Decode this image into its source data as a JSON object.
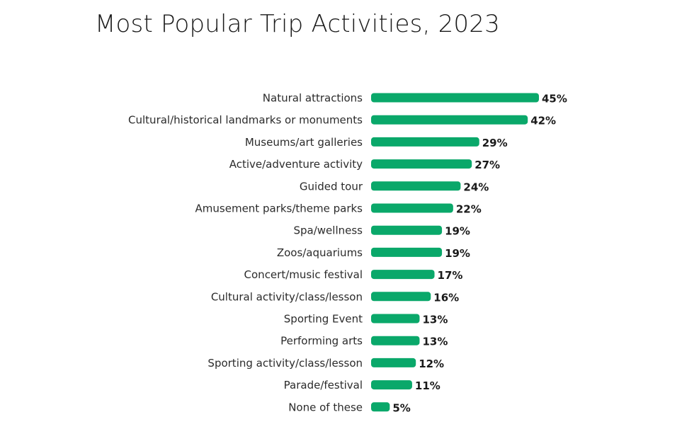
{
  "chart_data": {
    "type": "bar",
    "orientation": "horizontal",
    "title": "Most Popular Trip Activities, 2023",
    "xlabel": "",
    "ylabel": "",
    "categories": [
      "Natural attractions",
      "Cultural/historical landmarks or monuments",
      "Museums/art galleries",
      "Active/adventure activity",
      "Guided tour",
      "Amusement parks/theme parks",
      "Spa/wellness",
      "Zoos/aquariums",
      "Concert/music festival",
      "Cultural activity/class/lesson",
      "Sporting Event",
      "Performing arts",
      "Sporting activity/class/lesson",
      "Parade/festival",
      "None of these"
    ],
    "values": [
      45,
      42,
      29,
      27,
      24,
      22,
      19,
      19,
      17,
      16,
      13,
      13,
      12,
      11,
      5
    ],
    "value_labels": [
      "45%",
      "42%",
      "29%",
      "27%",
      "24%",
      "22%",
      "19%",
      "19%",
      "17%",
      "16%",
      "13%",
      "13%",
      "12%",
      "11%",
      "5%"
    ],
    "xlim": [
      0,
      45
    ],
    "grid": false,
    "legend": "none",
    "bar_color": "#0aa86a"
  }
}
